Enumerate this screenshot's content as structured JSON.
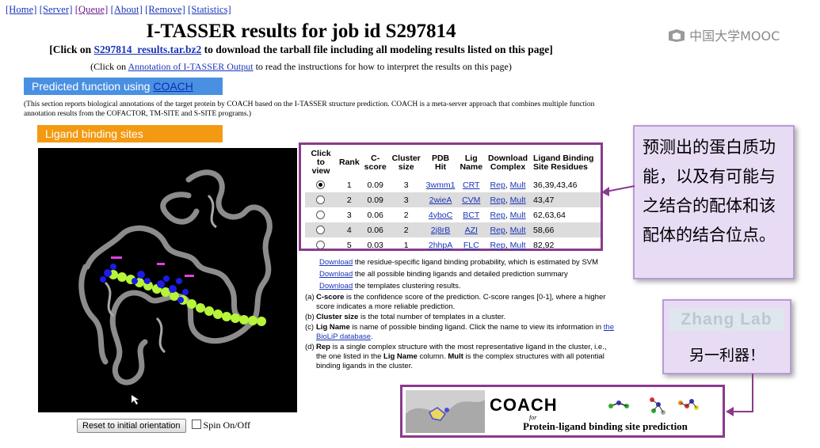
{
  "nav": {
    "items": [
      "[Home]",
      "[Server]",
      "[Queue]",
      "[About]",
      "[Remove]",
      "[Statistics]"
    ]
  },
  "title": "I-TASSER results for job id S297814",
  "click_line": {
    "prefix": "[Click on ",
    "link": "S297814_results.tar.bz2",
    "suffix": " to download the tarball file including all modeling results listed on this page]"
  },
  "annotation_line": {
    "prefix": "(Click on ",
    "link": "Annotation of I-TASSER Output",
    "suffix": " to read the instructions for how to interpret the results on this page)"
  },
  "predicted_function": {
    "label": "Predicted function using ",
    "link": "COACH"
  },
  "description": "(This section reports biological annotations of the target protein by COACH based on the I-TASSER structure prediction. COACH is a meta-server approach that combines multiple function annotation results from the COFACTOR, TM-SITE and S-SITE programs.)",
  "ligand_header": "Ligand binding sites",
  "table": {
    "headers": [
      "Click to view",
      "Rank",
      "C-score",
      "Cluster size",
      "PDB Hit",
      "Lig Name",
      "Download Complex",
      "Ligand Binding Site Residues"
    ],
    "rows": [
      {
        "rank": "1",
        "cscore": "0.09",
        "cluster": "3",
        "pdb": "3wmm1",
        "lig": "CRT",
        "residues": "36,39,43,46",
        "selected": true
      },
      {
        "rank": "2",
        "cscore": "0.09",
        "cluster": "3",
        "pdb": "2wieA",
        "lig": "CVM",
        "residues": "43,47",
        "selected": false
      },
      {
        "rank": "3",
        "cscore": "0.06",
        "cluster": "2",
        "pdb": "4yboC",
        "lig": "BCT",
        "residues": "62,63,64",
        "selected": false
      },
      {
        "rank": "4",
        "cscore": "0.06",
        "cluster": "2",
        "pdb": "2j8rB",
        "lig": "AZI",
        "residues": "58,66",
        "selected": false
      },
      {
        "rank": "5",
        "cscore": "0.03",
        "cluster": "1",
        "pdb": "2hhpA",
        "lig": "FLC",
        "residues": "82,92",
        "selected": false
      }
    ],
    "rep": "Rep",
    "mult": "Mult"
  },
  "downloads": [
    {
      "link": "Download",
      "text": " the residue-specific ligand binding probability, which is estimated by SVM"
    },
    {
      "link": "Download",
      "text": " the all possible binding ligands and detailed prediction summary"
    },
    {
      "link": "Download",
      "text": " the templates clustering results."
    }
  ],
  "notes": {
    "a": {
      "key": "(a)",
      "term": "C-score",
      "text": " is the confidence score of the prediction. C-score ranges [0-1], where a higher score indicates a more reliable prediction."
    },
    "b": {
      "key": "(b)",
      "term": "Cluster size",
      "text": " is the total number of templates in a cluster."
    },
    "c": {
      "key": "(c)",
      "term": "Lig Name",
      "text": " is name of possible binding ligand. Click the name to view its information in ",
      "link": "the BioLiP database",
      "tail": "."
    },
    "d": {
      "key": "(d)",
      "term": "Rep",
      "text": " is a single complex structure with the most representative ligand in the cluster, i.e., the one listed in the ",
      "term2": "Lig Name",
      "text2": " column. ",
      "term3": "Mult",
      "text3": " is the complex structures with all potential binding ligands in the cluster."
    }
  },
  "viewer_controls": {
    "reset": "Reset to initial orientation",
    "spin": "Spin On/Off"
  },
  "watermark": "中国大学MOOC",
  "callout1": "预测出的蛋白质功能，以及有可能与之结合的配体和该配体的结合位点。",
  "callout2": {
    "logo": "Zhang Lab",
    "text": "另一利器！"
  },
  "coach_banner": {
    "name": "COACH",
    "for": "for",
    "subtitle": "Protein-ligand binding site prediction"
  },
  "colors": {
    "link": "#1a35b8",
    "blue_header": "#4a90e2",
    "orange_header": "#f39a12",
    "highlight_border": "#8b3a8b",
    "callout_bg": "#e8dcf5"
  }
}
